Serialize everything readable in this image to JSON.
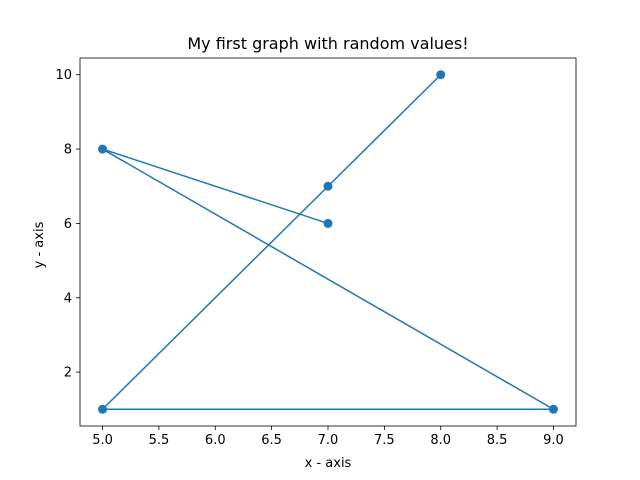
{
  "chart_data": {
    "type": "line",
    "title": "My first graph with random values!",
    "xlabel": "x - axis",
    "ylabel": "y - axis",
    "xlim": [
      4.8,
      9.2
    ],
    "ylim": [
      0.55,
      10.45
    ],
    "xticks": [
      5.0,
      5.5,
      6.0,
      6.5,
      7.0,
      7.5,
      8.0,
      8.5,
      9.0
    ],
    "xtick_labels": [
      "5.0",
      "5.5",
      "6.0",
      "6.5",
      "7.0",
      "7.5",
      "8.0",
      "8.5",
      "9.0"
    ],
    "yticks": [
      2,
      4,
      6,
      8,
      10
    ],
    "ytick_labels": [
      "2",
      "4",
      "6",
      "8",
      "10"
    ],
    "grid": false,
    "series": [
      {
        "x": [
          7,
          5,
          9,
          5,
          7,
          8
        ],
        "y": [
          6,
          8,
          1,
          1,
          7,
          10
        ],
        "color": "#1f77b4",
        "marker": "circle"
      }
    ]
  }
}
